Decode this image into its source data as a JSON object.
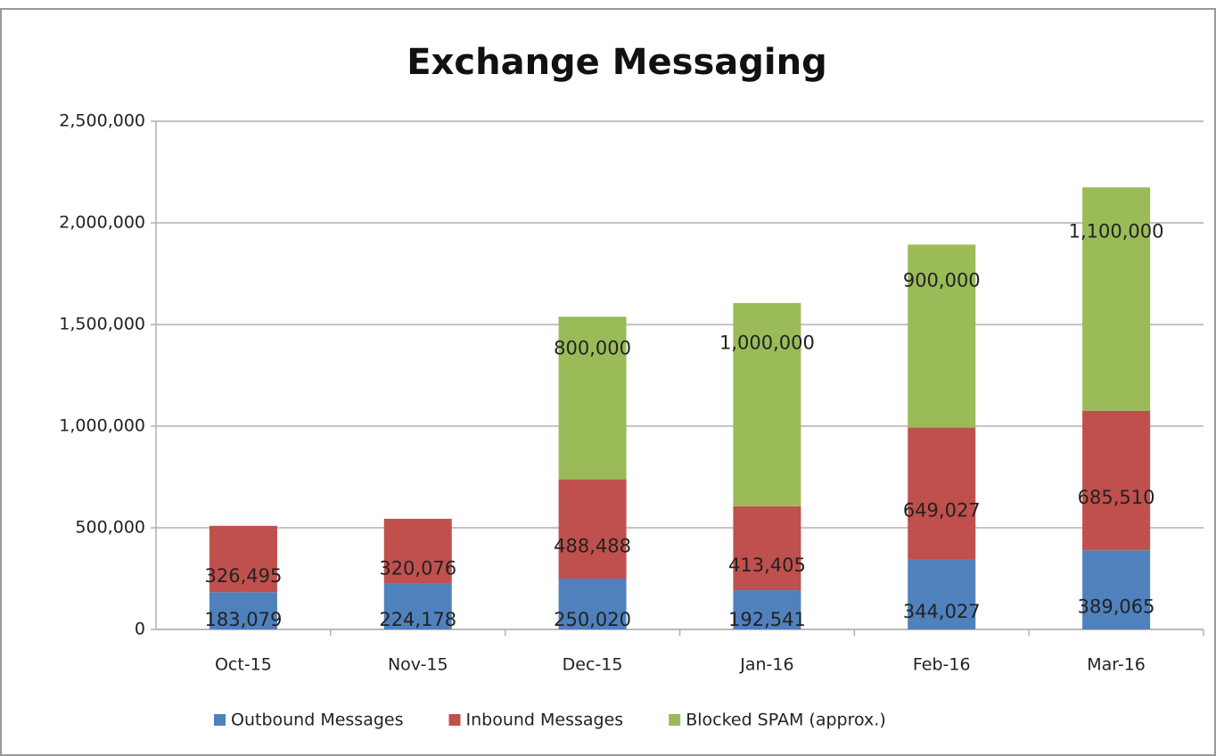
{
  "chart_data": {
    "type": "stacked_bar",
    "title": "Exchange Messaging",
    "categories": [
      "Oct-15",
      "Nov-15",
      "Dec-15",
      "Jan-16",
      "Feb-16",
      "Mar-16"
    ],
    "series": [
      {
        "name": "Outbound Messages",
        "color": "#4f81bd",
        "values": [
          183079,
          224178,
          250020,
          192541,
          344027,
          389065
        ],
        "value_labels": [
          "183,079",
          "224,178",
          "250,020",
          "192,541",
          "344,027",
          "389,065"
        ]
      },
      {
        "name": "Inbound Messages",
        "color": "#c0504d",
        "values": [
          326495,
          320076,
          488488,
          413405,
          649027,
          685510
        ],
        "value_labels": [
          "326,495",
          "320,076",
          "488,488",
          "413,405",
          "649,027",
          "685,510"
        ]
      },
      {
        "name": "Blocked SPAM (approx.)",
        "color": "#9bbb59",
        "values": [
          null,
          null,
          800000,
          1000000,
          900000,
          1100000
        ],
        "value_labels": [
          null,
          null,
          "800,000",
          "1,000,000",
          "900,000",
          "1,100,000"
        ]
      }
    ],
    "ylim": [
      0,
      2500000
    ],
    "yticks": [
      0,
      {
        "value": 500000,
        "label": "500,000"
      },
      {
        "value": 1000000,
        "label": "1,000,000"
      },
      {
        "value": 1500000,
        "label": "1,500,000"
      },
      {
        "value": 2000000,
        "label": "2,000,000"
      },
      {
        "value": 2500000,
        "label": "2,500,000"
      }
    ],
    "grid": true,
    "legend": "bottom"
  }
}
